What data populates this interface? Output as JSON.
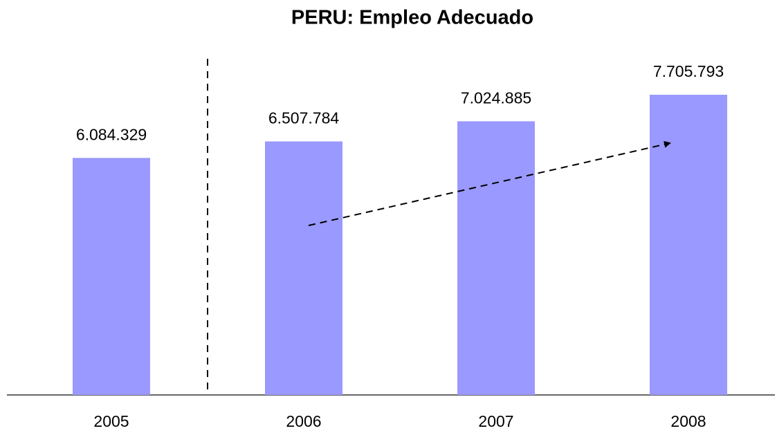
{
  "chart_data": {
    "type": "bar",
    "title": "PERU: Empleo Adecuado",
    "categories": [
      "2005",
      "2006",
      "2007",
      "2008"
    ],
    "values": [
      6084329,
      6507784,
      7024885,
      7705793
    ],
    "value_labels": [
      "6.084.329",
      "6.507.784",
      "7.024.885",
      "7.705.793"
    ],
    "color": "#9999ff"
  }
}
